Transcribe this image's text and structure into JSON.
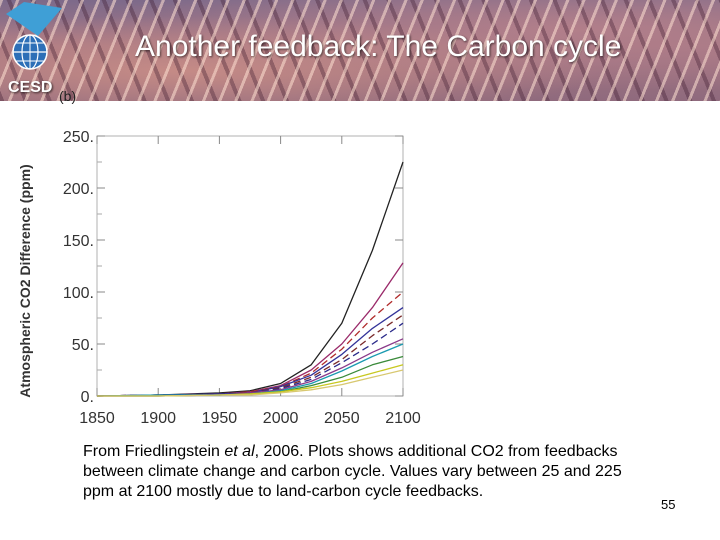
{
  "slide": {
    "title": "Another feedback: The Carbon cycle",
    "logo_text": "CESD",
    "panel_label": "(b)",
    "page_number": "55",
    "caption": {
      "before_italic": "From Friedlingstein ",
      "italic": "et al",
      "after_italic": ", 2006. Plots shows additional CO2 from feedbacks between climate change and carbon cycle. Values vary between 25 and 225 ppm at 2100 mostly due to land-carbon cycle feedbacks."
    }
  },
  "chart_data": {
    "type": "line",
    "ylabel": "Atmospheric CO2 Difference (ppm)",
    "xlabel": "",
    "xlim": [
      1850,
      2100
    ],
    "ylim": [
      0,
      250
    ],
    "xticks": [
      "1850",
      "1900",
      "1950",
      "2000",
      "2050",
      "2100"
    ],
    "yticks": [
      "0.",
      "50.",
      "100.",
      "150.",
      "200.",
      "250."
    ],
    "grid": false,
    "x": [
      1850,
      1900,
      1950,
      1975,
      2000,
      2025,
      2050,
      2075,
      2100
    ],
    "series": [
      {
        "color": "#222222",
        "dash": false,
        "values": [
          0,
          1,
          3,
          5,
          12,
          30,
          70,
          140,
          225
        ]
      },
      {
        "color": "#9a2a6a",
        "dash": false,
        "values": [
          0,
          1,
          2,
          4,
          10,
          25,
          50,
          85,
          128
        ]
      },
      {
        "color": "#b02a2a",
        "dash": true,
        "values": [
          0,
          1,
          2,
          4,
          9,
          22,
          45,
          75,
          100
        ]
      },
      {
        "color": "#333399",
        "dash": false,
        "values": [
          0,
          1,
          2,
          3,
          9,
          20,
          40,
          65,
          85
        ]
      },
      {
        "color": "#7a2a2a",
        "dash": true,
        "values": [
          0,
          1,
          2,
          3,
          8,
          18,
          35,
          58,
          78
        ]
      },
      {
        "color": "#2a2a8a",
        "dash": true,
        "values": [
          0,
          1,
          2,
          3,
          7,
          16,
          32,
          50,
          70
        ]
      },
      {
        "color": "#8a3a8a",
        "dash": false,
        "values": [
          0,
          0,
          1,
          3,
          6,
          14,
          27,
          42,
          55
        ]
      },
      {
        "color": "#1a9ab0",
        "dash": false,
        "values": [
          0,
          1,
          1,
          2,
          5,
          12,
          24,
          38,
          50
        ]
      },
      {
        "color": "#3a8a3a",
        "dash": false,
        "values": [
          0,
          0,
          1,
          2,
          4,
          10,
          18,
          30,
          38
        ]
      },
      {
        "color": "#c8c820",
        "dash": false,
        "values": [
          0,
          0,
          1,
          2,
          4,
          8,
          14,
          22,
          30
        ]
      },
      {
        "color": "#d8c870",
        "dash": false,
        "values": [
          0,
          0,
          1,
          1,
          3,
          6,
          11,
          18,
          25
        ]
      }
    ]
  }
}
